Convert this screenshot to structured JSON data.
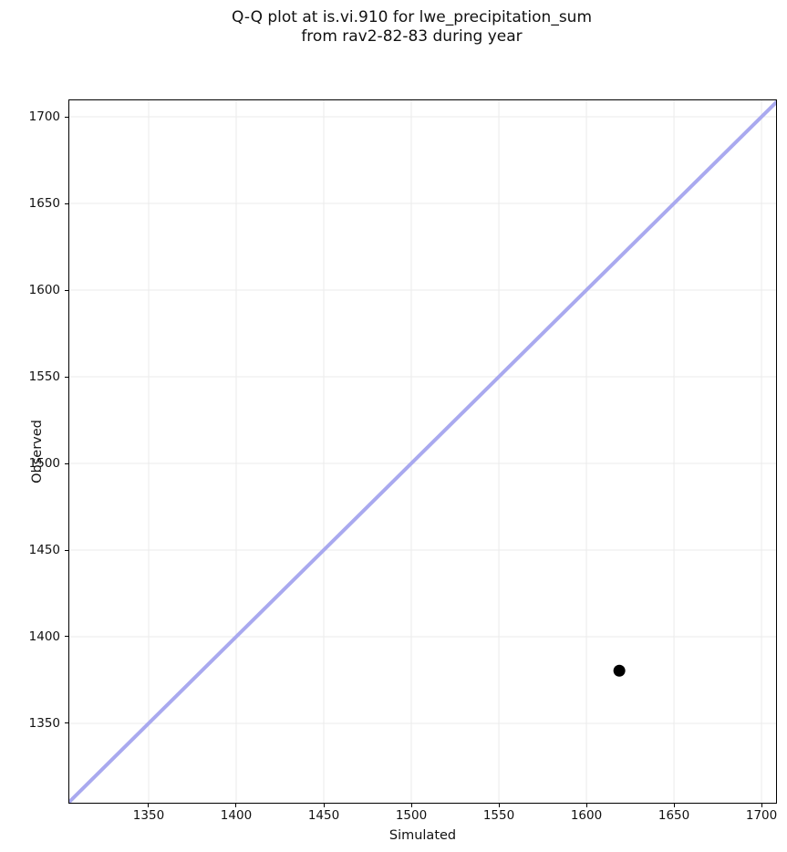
{
  "chart_data": {
    "type": "scatter",
    "title_lines": [
      "Q-Q plot at is.vi.910 for lwe_precipitation_sum",
      "from rav2-82-83 during year"
    ],
    "xlabel": "Simulated",
    "ylabel": "Observed",
    "xlim": [
      1304.7,
      1708.3
    ],
    "ylim": [
      1304.2,
      1709.5
    ],
    "xticks": [
      1350,
      1400,
      1450,
      1500,
      1550,
      1600,
      1650,
      1700
    ],
    "yticks": [
      1350,
      1400,
      1450,
      1500,
      1550,
      1600,
      1650,
      1700
    ],
    "grid": true,
    "legend": false,
    "points": [
      {
        "x": 1618.8,
        "y": 1380.4
      }
    ],
    "identity_line": {
      "from": 1304.7,
      "to": 1708.3
    },
    "colors": {
      "identity_line": "#a9a9ef",
      "point": "#000000",
      "grid": "#ebebeb",
      "spine": "#000000",
      "background": "#ffffff"
    }
  }
}
